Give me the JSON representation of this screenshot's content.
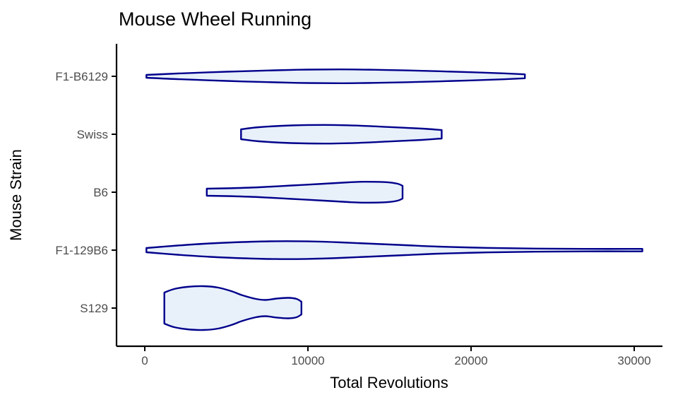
{
  "chart_data": {
    "type": "violin",
    "title": "Mouse Wheel Running",
    "xlabel": "Total Revolutions",
    "ylabel": "Mouse Strain",
    "xlim": [
      0,
      30000
    ],
    "xticks": [
      0,
      10000,
      20000,
      30000
    ],
    "xtick_labels": [
      "0",
      "10000",
      "20000",
      "30000"
    ],
    "categories": [
      "F1-B6129",
      "Swiss",
      "B6",
      "F1-129B6",
      "S129"
    ],
    "legend": "none",
    "grid": "off",
    "colors": {
      "stroke": "#00008B",
      "fill": "#E8F0FA",
      "axis": "#000000",
      "tick_text": "#4d4d4d"
    },
    "violins": [
      {
        "strain": "F1-B6129",
        "x_range": [
          100,
          23300
        ],
        "profile": [
          [
            100,
            2
          ],
          [
            2000,
            4
          ],
          [
            5000,
            6.5
          ],
          [
            8000,
            8.5
          ],
          [
            10000,
            9.5
          ],
          [
            12000,
            9.8
          ],
          [
            14000,
            9.3
          ],
          [
            17000,
            7.8
          ],
          [
            20000,
            5.8
          ],
          [
            22000,
            4.2
          ],
          [
            23300,
            2.8
          ]
        ]
      },
      {
        "strain": "Swiss",
        "x_range": [
          5900,
          18200
        ],
        "profile": [
          [
            5900,
            7
          ],
          [
            7000,
            10
          ],
          [
            9000,
            12.5
          ],
          [
            11000,
            13.2
          ],
          [
            13000,
            12.3
          ],
          [
            15000,
            10.2
          ],
          [
            17000,
            8
          ],
          [
            18200,
            6
          ]
        ]
      },
      {
        "strain": "B6",
        "x_range": [
          3800,
          15800
        ],
        "profile": [
          [
            3800,
            5
          ],
          [
            5000,
            5.5
          ],
          [
            7000,
            7
          ],
          [
            9000,
            9.5
          ],
          [
            11000,
            12
          ],
          [
            12500,
            14
          ],
          [
            13500,
            14.8
          ],
          [
            14800,
            14.2
          ],
          [
            15500,
            12
          ],
          [
            15800,
            9
          ]
        ]
      },
      {
        "strain": "F1-129B6",
        "x_range": [
          100,
          30500
        ],
        "profile": [
          [
            100,
            3
          ],
          [
            2000,
            6.5
          ],
          [
            4000,
            9.5
          ],
          [
            6000,
            11.5
          ],
          [
            8000,
            12.6
          ],
          [
            10000,
            12.4
          ],
          [
            12000,
            11
          ],
          [
            14000,
            9
          ],
          [
            16000,
            7
          ],
          [
            18000,
            5
          ],
          [
            21000,
            3.2
          ],
          [
            24000,
            2.2
          ],
          [
            27000,
            1.8
          ],
          [
            30500,
            1.8
          ]
        ]
      },
      {
        "strain": "S129",
        "x_range": [
          1200,
          9600
        ],
        "profile": [
          [
            1200,
            22
          ],
          [
            1800,
            27
          ],
          [
            2600,
            30
          ],
          [
            3600,
            31
          ],
          [
            4500,
            29
          ],
          [
            5300,
            24
          ],
          [
            6000,
            18
          ],
          [
            6800,
            13
          ],
          [
            7400,
            11.5
          ],
          [
            8100,
            13.5
          ],
          [
            8800,
            14.5
          ],
          [
            9300,
            13
          ],
          [
            9600,
            9
          ]
        ]
      }
    ]
  }
}
